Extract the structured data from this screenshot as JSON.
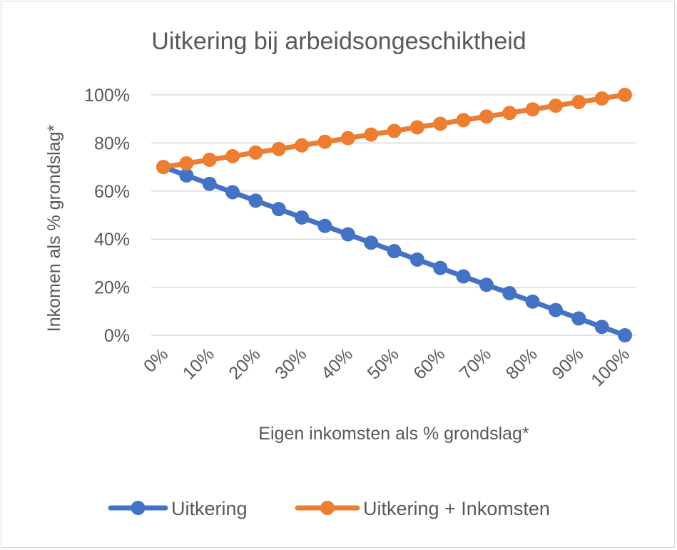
{
  "chart_data": {
    "type": "line",
    "title": "Uitkering bij arbeidsongeschiktheid",
    "xlabel": "Eigen inkomsten als % grondslag*",
    "ylabel": "Inkomen als % grondslag*",
    "x": [
      0,
      5,
      10,
      15,
      20,
      25,
      30,
      35,
      40,
      45,
      50,
      55,
      60,
      65,
      70,
      75,
      80,
      85,
      90,
      95,
      100
    ],
    "x_tick_labels": [
      "0%",
      "10%",
      "20%",
      "30%",
      "40%",
      "50%",
      "60%",
      "70%",
      "80%",
      "90%",
      "100%"
    ],
    "y_tick_labels": [
      "0%",
      "20%",
      "40%",
      "60%",
      "80%",
      "100%"
    ],
    "ylim": [
      0,
      100
    ],
    "grid": true,
    "legend_position": "bottom",
    "series": [
      {
        "name": "Uitkering",
        "color": "#4472c4",
        "values": [
          70,
          66.5,
          63,
          59.5,
          56,
          52.5,
          49,
          45.5,
          42,
          38.5,
          35,
          31.5,
          28,
          24.5,
          21,
          17.5,
          14,
          10.5,
          7,
          3.5,
          0
        ]
      },
      {
        "name": "Uitkering + Inkomsten",
        "color": "#ed7d31",
        "values": [
          70,
          71.5,
          73,
          74.5,
          76,
          77.5,
          79,
          80.5,
          82,
          83.5,
          85,
          86.5,
          88,
          89.5,
          91,
          92.5,
          94,
          95.5,
          97,
          98.5,
          100
        ]
      }
    ]
  }
}
